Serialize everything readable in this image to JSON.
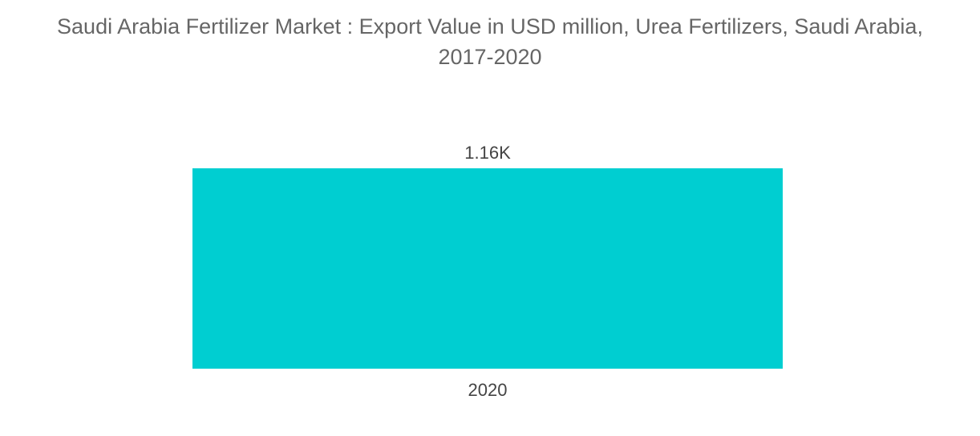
{
  "chart_data": {
    "type": "bar",
    "title_line1": "Saudi Arabia Fertilizer Market : Export Value in USD million, Urea Fertilizers, Saudi Arabia,",
    "title_line2": "2017-2020",
    "categories": [
      "2020"
    ],
    "values": [
      1160
    ],
    "data_labels": [
      "1.16K"
    ],
    "ylim": [
      0,
      1160
    ],
    "grid": false,
    "legend": "none",
    "bar_color": "#00CED1"
  }
}
